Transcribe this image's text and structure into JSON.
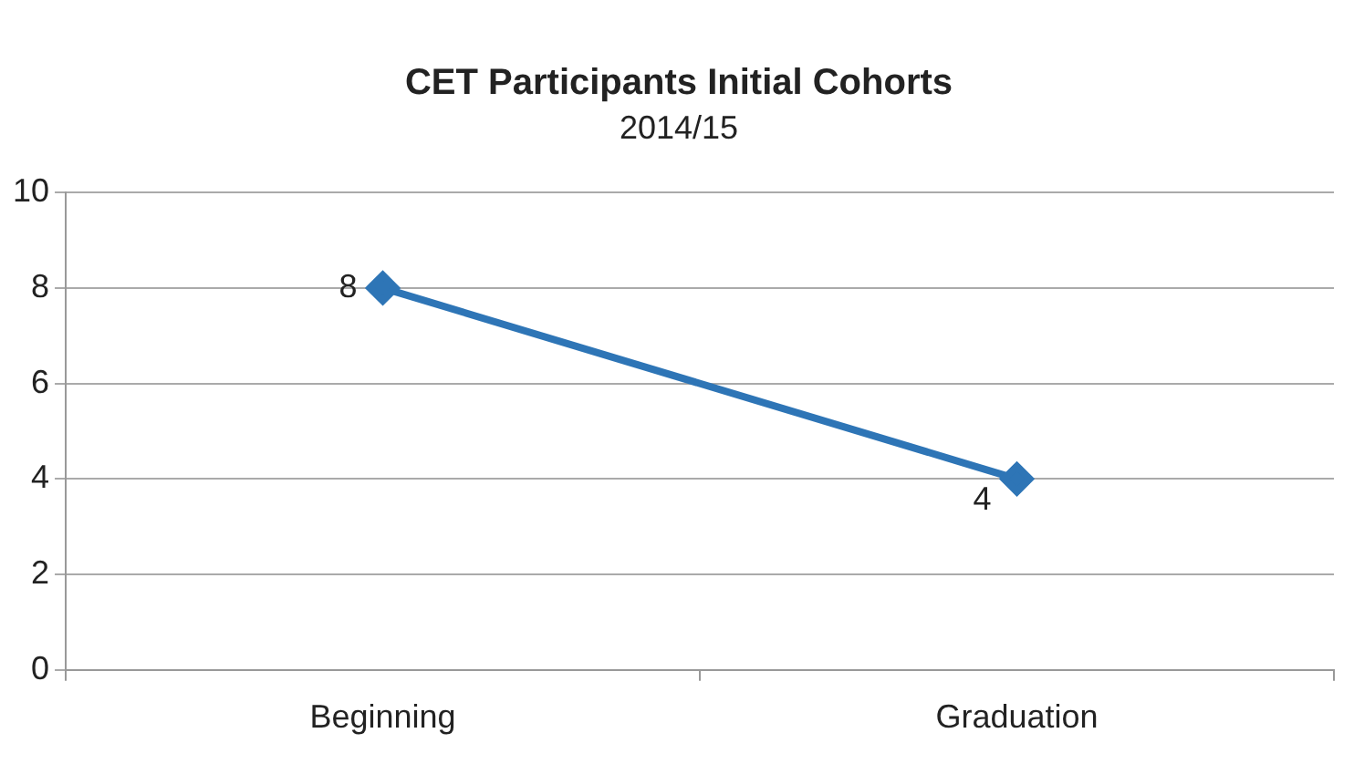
{
  "chart_data": {
    "type": "line",
    "title": "CET Participants Initial Cohorts",
    "subtitle": "2014/15",
    "categories": [
      "Beginning",
      "Graduation"
    ],
    "series": [
      {
        "color": "#2e75b6",
        "values": [
          8,
          4
        ]
      }
    ],
    "ylim": [
      0,
      10
    ],
    "yticks": [
      0,
      2,
      4,
      6,
      8,
      10
    ],
    "grid": "y",
    "legend": false,
    "marker": "diamond",
    "line_style": "solid",
    "data_labels": true
  }
}
